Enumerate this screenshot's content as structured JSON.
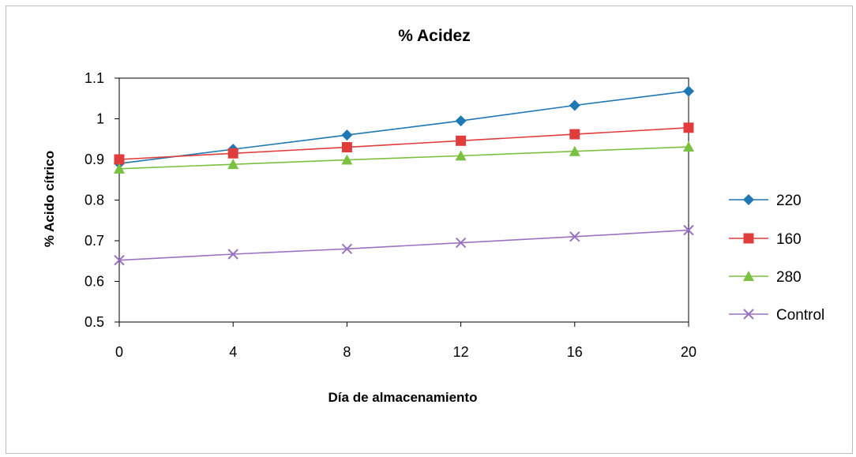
{
  "chart_data": {
    "type": "line",
    "title": "% Acidez",
    "xlabel": "Día de almacenamiento",
    "ylabel": "% Acido cítrico",
    "x": [
      0,
      4,
      8,
      12,
      16,
      20
    ],
    "xticks": [
      "0",
      "4",
      "8",
      "12",
      "16",
      "20"
    ],
    "yticks": [
      "0.5",
      "0.6",
      "0.7",
      "0.8",
      "0.9",
      "1",
      "1.1"
    ],
    "ylim": [
      0.5,
      1.1
    ],
    "xlim": [
      0,
      20
    ],
    "grid": false,
    "legend_position": "right",
    "series": [
      {
        "name": "220",
        "color": "#1f77b4",
        "marker": "diamond",
        "values": [
          0.89,
          0.925,
          0.96,
          0.995,
          1.033,
          1.068
        ]
      },
      {
        "name": "160",
        "color": "#e03c3c",
        "marker": "square",
        "values": [
          0.9,
          0.915,
          0.93,
          0.946,
          0.962,
          0.978
        ]
      },
      {
        "name": "280",
        "color": "#7ac142",
        "marker": "triangle",
        "values": [
          0.877,
          0.888,
          0.899,
          0.909,
          0.92,
          0.931
        ]
      },
      {
        "name": "Control",
        "color": "#9b72c1",
        "marker": "x",
        "values": [
          0.652,
          0.667,
          0.68,
          0.695,
          0.71,
          0.726
        ]
      }
    ]
  }
}
